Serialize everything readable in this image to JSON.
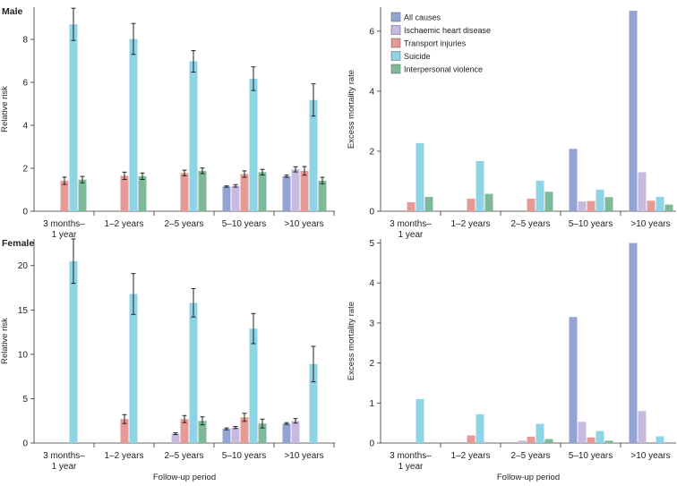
{
  "figure": {
    "xlabel": "Follow-up period",
    "categories": [
      [
        "3 months–",
        "1 year"
      ],
      [
        "1–2 years"
      ],
      [
        "2–5 years"
      ],
      [
        "5–10 years"
      ],
      [
        ">10 years"
      ]
    ],
    "series_names": [
      "All causes",
      "Ischaemic heart disease",
      "Transport injuries",
      "Suicide",
      "Interpersonal violence"
    ],
    "colors": [
      "#93a3d4",
      "#c8b9e0",
      "#e59a95",
      "#8fd4e6",
      "#7fba98"
    ]
  },
  "chart_data": [
    {
      "id": "male-rr",
      "type": "bar",
      "title": "Male",
      "ylabel": "Relative risk",
      "ylim": [
        0,
        9.5
      ],
      "yticks": [
        0,
        2,
        4,
        6,
        8
      ],
      "series": [
        {
          "name": "All causes",
          "values": [
            null,
            null,
            null,
            1.15,
            1.63
          ],
          "err": [
            null,
            null,
            null,
            0.03,
            0.05
          ]
        },
        {
          "name": "Ischaemic heart disease",
          "values": [
            null,
            null,
            null,
            1.18,
            1.95
          ],
          "err": [
            null,
            null,
            null,
            0.06,
            0.12
          ]
        },
        {
          "name": "Transport injuries",
          "values": [
            1.42,
            1.65,
            1.78,
            1.73,
            1.88
          ],
          "err": [
            0.17,
            0.17,
            0.13,
            0.15,
            0.2
          ]
        },
        {
          "name": "Suicide",
          "values": [
            8.7,
            8.02,
            6.98,
            6.17,
            5.18
          ],
          "err": [
            0.75,
            0.72,
            0.5,
            0.55,
            0.75
          ]
        },
        {
          "name": "Interpersonal violence",
          "values": [
            1.47,
            1.63,
            1.88,
            1.82,
            1.43
          ],
          "err": [
            0.15,
            0.15,
            0.13,
            0.13,
            0.15
          ]
        }
      ]
    },
    {
      "id": "male-emr",
      "type": "bar",
      "title": "",
      "ylabel": "Excess mortality rate",
      "ylim": [
        0,
        6.8
      ],
      "yticks": [
        0,
        2,
        4,
        6
      ],
      "legend": "top-left",
      "series": [
        {
          "name": "All causes",
          "values": [
            null,
            null,
            null,
            2.08,
            6.68
          ]
        },
        {
          "name": "Ischaemic heart disease",
          "values": [
            null,
            null,
            null,
            0.33,
            1.3
          ]
        },
        {
          "name": "Transport injuries",
          "values": [
            0.3,
            0.42,
            0.42,
            0.34,
            0.35
          ]
        },
        {
          "name": "Suicide",
          "values": [
            2.27,
            1.67,
            1.02,
            0.72,
            0.48
          ]
        },
        {
          "name": "Interpersonal violence",
          "values": [
            0.48,
            0.58,
            0.65,
            0.47,
            0.22
          ]
        }
      ]
    },
    {
      "id": "female-rr",
      "type": "bar",
      "title": "Female",
      "ylabel": "Relative risk",
      "ylim": [
        0,
        23
      ],
      "yticks": [
        0,
        5,
        10,
        15,
        20
      ],
      "series": [
        {
          "name": "All causes",
          "values": [
            null,
            null,
            null,
            1.6,
            2.2
          ],
          "err": [
            null,
            null,
            null,
            0.1,
            0.1
          ]
        },
        {
          "name": "Ischaemic heart disease",
          "values": [
            null,
            null,
            1.05,
            1.75,
            2.5
          ],
          "err": [
            null,
            null,
            0.1,
            0.12,
            0.25
          ]
        },
        {
          "name": "Transport injuries",
          "values": [
            null,
            2.7,
            2.7,
            2.9,
            null
          ],
          "err": [
            null,
            0.5,
            0.4,
            0.45,
            null
          ]
        },
        {
          "name": "Suicide",
          "values": [
            20.5,
            16.8,
            15.8,
            12.9,
            8.9
          ],
          "err": [
            2.5,
            2.3,
            1.6,
            1.7,
            2.0
          ]
        },
        {
          "name": "Interpersonal violence",
          "values": [
            null,
            null,
            2.5,
            2.2,
            null
          ],
          "err": [
            null,
            null,
            0.45,
            0.5,
            null
          ]
        }
      ]
    },
    {
      "id": "female-emr",
      "type": "bar",
      "title": "",
      "ylabel": "Excess mortality rate",
      "ylim": [
        0,
        5.1
      ],
      "yticks": [
        0,
        1,
        2,
        3,
        4,
        5
      ],
      "series": [
        {
          "name": "All causes",
          "values": [
            null,
            null,
            null,
            3.15,
            5.0
          ]
        },
        {
          "name": "Ischaemic heart disease",
          "values": [
            null,
            null,
            0.06,
            0.53,
            0.8
          ]
        },
        {
          "name": "Transport injuries",
          "values": [
            null,
            0.19,
            0.16,
            0.14,
            null
          ]
        },
        {
          "name": "Suicide",
          "values": [
            1.1,
            0.72,
            0.48,
            0.3,
            0.17
          ]
        },
        {
          "name": "Interpersonal violence",
          "values": [
            null,
            null,
            0.1,
            0.06,
            null
          ]
        }
      ]
    }
  ]
}
